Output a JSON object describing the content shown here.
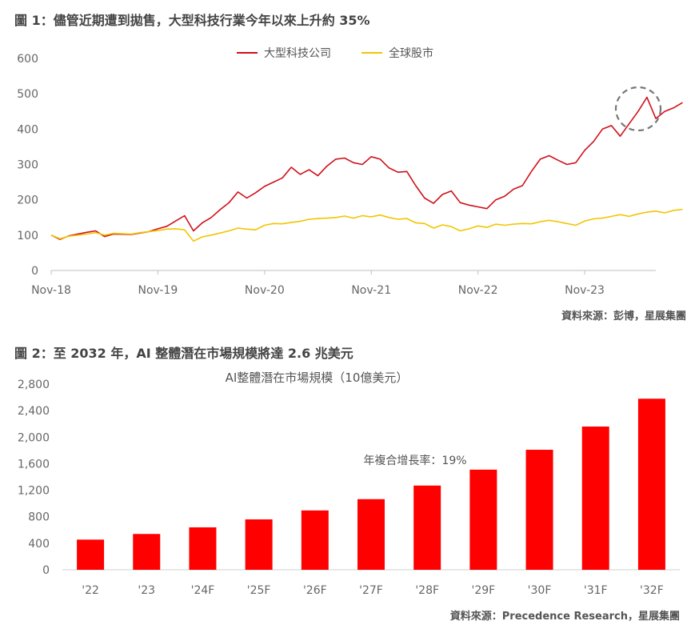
{
  "figure1": {
    "title": "圖 1：儘管近期遭到拋售，大型科技行業今年以來上升約 35%",
    "source": "資料來源：彭博，星展集團"
  },
  "figure2": {
    "title": "圖 2：至 2032 年，AI 整體潛在市場規模將達 2.6 兆美元",
    "source": "資料來源：Precedence Research，星展集團"
  },
  "chart_data": [
    {
      "type": "line",
      "title": "",
      "xlabel": "",
      "ylabel": "",
      "ylim": [
        0,
        600
      ],
      "yticks": [
        0,
        100,
        200,
        300,
        400,
        500,
        600
      ],
      "xticks": [
        "Nov-18",
        "Nov-19",
        "Nov-20",
        "Nov-21",
        "Nov-22",
        "Nov-23"
      ],
      "xrange": [
        "2018-11",
        "2024-07"
      ],
      "grid": false,
      "legend_position": "top-center",
      "annotation": "dashed-circle-around-recent-selloff",
      "series": [
        {
          "name": "大型科技公司",
          "color": "#d0101a",
          "points": [
            [
              "2018-11",
              100
            ],
            [
              "2018-12",
              88
            ],
            [
              "2019-01",
              98
            ],
            [
              "2019-03",
              108
            ],
            [
              "2019-04",
              112
            ],
            [
              "2019-05",
              96
            ],
            [
              "2019-06",
              103
            ],
            [
              "2019-08",
              102
            ],
            [
              "2019-09",
              106
            ],
            [
              "2019-10",
              110
            ],
            [
              "2019-11",
              118
            ],
            [
              "2019-12",
              125
            ],
            [
              "2020-01",
              140
            ],
            [
              "2020-02",
              155
            ],
            [
              "2020-03",
              112
            ],
            [
              "2020-04",
              135
            ],
            [
              "2020-05",
              150
            ],
            [
              "2020-06",
              172
            ],
            [
              "2020-07",
              192
            ],
            [
              "2020-08",
              222
            ],
            [
              "2020-09",
              205
            ],
            [
              "2020-10",
              220
            ],
            [
              "2020-11",
              238
            ],
            [
              "2020-12",
              250
            ],
            [
              "2021-01",
              262
            ],
            [
              "2021-02",
              292
            ],
            [
              "2021-03",
              272
            ],
            [
              "2021-04",
              285
            ],
            [
              "2021-05",
              268
            ],
            [
              "2021-06",
              295
            ],
            [
              "2021-07",
              315
            ],
            [
              "2021-08",
              318
            ],
            [
              "2021-09",
              305
            ],
            [
              "2021-10",
              300
            ],
            [
              "2021-11",
              322
            ],
            [
              "2021-12",
              315
            ],
            [
              "2022-01",
              290
            ],
            [
              "2022-02",
              278
            ],
            [
              "2022-03",
              280
            ],
            [
              "2022-04",
              240
            ],
            [
              "2022-05",
              205
            ],
            [
              "2022-06",
              190
            ],
            [
              "2022-07",
              215
            ],
            [
              "2022-08",
              225
            ],
            [
              "2022-09",
              192
            ],
            [
              "2022-10",
              185
            ],
            [
              "2022-11",
              180
            ],
            [
              "2022-12",
              175
            ],
            [
              "2023-01",
              200
            ],
            [
              "2023-02",
              210
            ],
            [
              "2023-03",
              230
            ],
            [
              "2023-04",
              240
            ],
            [
              "2023-05",
              280
            ],
            [
              "2023-06",
              315
            ],
            [
              "2023-07",
              325
            ],
            [
              "2023-08",
              312
            ],
            [
              "2023-09",
              300
            ],
            [
              "2023-10",
              305
            ],
            [
              "2023-11",
              340
            ],
            [
              "2023-12",
              365
            ],
            [
              "2024-01",
              400
            ],
            [
              "2024-02",
              410
            ],
            [
              "2024-03",
              380
            ],
            [
              "2024-04",
              415
            ],
            [
              "2024-05",
              450
            ],
            [
              "2024-06",
              490
            ],
            [
              "2024-07",
              430
            ],
            [
              "2024-08",
              450
            ],
            [
              "2024-09",
              460
            ],
            [
              "2024-10",
              475
            ]
          ]
        },
        {
          "name": "全球股市",
          "color": "#f2c500",
          "points": [
            [
              "2018-11",
              100
            ],
            [
              "2018-12",
              90
            ],
            [
              "2019-01",
              97
            ],
            [
              "2019-03",
              103
            ],
            [
              "2019-04",
              107
            ],
            [
              "2019-05",
              100
            ],
            [
              "2019-06",
              105
            ],
            [
              "2019-08",
              103
            ],
            [
              "2019-09",
              107
            ],
            [
              "2019-10",
              110
            ],
            [
              "2019-11",
              113
            ],
            [
              "2019-12",
              117
            ],
            [
              "2020-01",
              118
            ],
            [
              "2020-02",
              115
            ],
            [
              "2020-03",
              83
            ],
            [
              "2020-04",
              95
            ],
            [
              "2020-05",
              100
            ],
            [
              "2020-06",
              106
            ],
            [
              "2020-07",
              112
            ],
            [
              "2020-08",
              120
            ],
            [
              "2020-09",
              117
            ],
            [
              "2020-10",
              115
            ],
            [
              "2020-11",
              128
            ],
            [
              "2020-12",
              133
            ],
            [
              "2021-01",
              132
            ],
            [
              "2021-02",
              136
            ],
            [
              "2021-03",
              139
            ],
            [
              "2021-04",
              145
            ],
            [
              "2021-05",
              147
            ],
            [
              "2021-06",
              148
            ],
            [
              "2021-07",
              150
            ],
            [
              "2021-08",
              154
            ],
            [
              "2021-09",
              148
            ],
            [
              "2021-10",
              155
            ],
            [
              "2021-11",
              152
            ],
            [
              "2021-12",
              157
            ],
            [
              "2022-01",
              150
            ],
            [
              "2022-02",
              145
            ],
            [
              "2022-03",
              147
            ],
            [
              "2022-04",
              135
            ],
            [
              "2022-05",
              133
            ],
            [
              "2022-06",
              120
            ],
            [
              "2022-07",
              129
            ],
            [
              "2022-08",
              124
            ],
            [
              "2022-09",
              112
            ],
            [
              "2022-10",
              118
            ],
            [
              "2022-11",
              126
            ],
            [
              "2022-12",
              122
            ],
            [
              "2023-01",
              131
            ],
            [
              "2023-02",
              128
            ],
            [
              "2023-03",
              131
            ],
            [
              "2023-04",
              133
            ],
            [
              "2023-05",
              132
            ],
            [
              "2023-06",
              138
            ],
            [
              "2023-07",
              142
            ],
            [
              "2023-08",
              138
            ],
            [
              "2023-09",
              133
            ],
            [
              "2023-10",
              128
            ],
            [
              "2023-11",
              140
            ],
            [
              "2023-12",
              146
            ],
            [
              "2024-01",
              148
            ],
            [
              "2024-02",
              153
            ],
            [
              "2024-03",
              158
            ],
            [
              "2024-04",
              153
            ],
            [
              "2024-05",
              160
            ],
            [
              "2024-06",
              165
            ],
            [
              "2024-07",
              168
            ],
            [
              "2024-08",
              163
            ],
            [
              "2024-09",
              170
            ],
            [
              "2024-10",
              173
            ]
          ]
        }
      ]
    },
    {
      "type": "bar",
      "title": "AI整體潛在市場規模（10億美元）",
      "xlabel": "",
      "ylabel": "",
      "ylim": [
        0,
        2800
      ],
      "yticks": [
        "0",
        "400",
        "800",
        "1,200",
        "1,600",
        "2,000",
        "2,400",
        "2,800"
      ],
      "categories": [
        "'22",
        "'23",
        "'24F",
        "'25F",
        "'26F",
        "'27F",
        "'28F",
        "'29F",
        "'30F",
        "'31F",
        "'32F"
      ],
      "values": [
        455,
        540,
        640,
        760,
        895,
        1065,
        1270,
        1510,
        1810,
        2160,
        2580
      ],
      "color": "#ff0000",
      "annotation": "年複合增長率：19%",
      "grid": false
    }
  ]
}
